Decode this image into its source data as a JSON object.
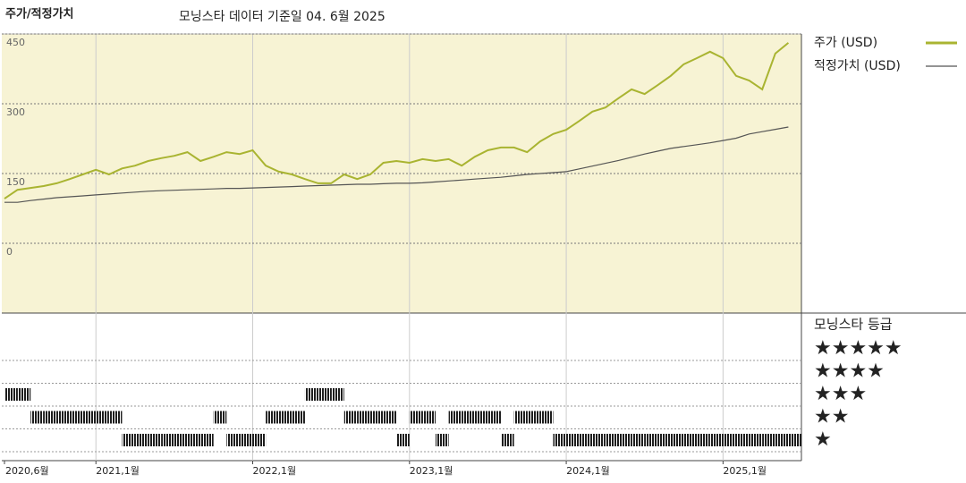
{
  "chart_data": {
    "type": "line",
    "title": "주가/적정가치",
    "subtitle": "모닝스타 데이터 기준일 04. 6월 2025",
    "x": [
      "2020-06",
      "2020-07",
      "2020-08",
      "2020-09",
      "2020-10",
      "2020-11",
      "2020-12",
      "2021-01",
      "2021-02",
      "2021-03",
      "2021-04",
      "2021-05",
      "2021-06",
      "2021-07",
      "2021-08",
      "2021-09",
      "2021-10",
      "2021-11",
      "2021-12",
      "2022-01",
      "2022-02",
      "2022-03",
      "2022-04",
      "2022-05",
      "2022-06",
      "2022-07",
      "2022-08",
      "2022-09",
      "2022-10",
      "2022-11",
      "2022-12",
      "2023-01",
      "2023-02",
      "2023-03",
      "2023-04",
      "2023-05",
      "2023-06",
      "2023-07",
      "2023-08",
      "2023-09",
      "2023-10",
      "2023-11",
      "2023-12",
      "2024-01",
      "2024-02",
      "2024-03",
      "2024-04",
      "2024-05",
      "2024-06",
      "2024-07",
      "2024-08",
      "2024-09",
      "2024-10",
      "2024-11",
      "2024-12",
      "2025-01",
      "2025-02",
      "2025-03",
      "2025-04",
      "2025-05",
      "2025-06"
    ],
    "xlim": [
      "2020-06",
      "2025-07"
    ],
    "xticks": [
      {
        "value": "2020-06",
        "label": "2020,6월"
      },
      {
        "value": "2021-01",
        "label": "2021,1월"
      },
      {
        "value": "2022-01",
        "label": "2022,1월"
      },
      {
        "value": "2023-01",
        "label": "2023,1월"
      },
      {
        "value": "2024-01",
        "label": "2024,1월"
      },
      {
        "value": "2025-01",
        "label": "2025,1월"
      }
    ],
    "ylim": [
      -150,
      450
    ],
    "yticks": [
      0,
      150,
      300,
      450
    ],
    "grid": true,
    "background": "#f7f3d4",
    "series": [
      {
        "name": "주가 (USD)",
        "color": "#a9b431",
        "values": [
          96,
          115,
          119,
          123,
          129,
          138,
          148,
          158,
          148,
          161,
          167,
          177,
          183,
          188,
          196,
          177,
          186,
          196,
          192,
          200,
          167,
          154,
          148,
          138,
          129,
          129,
          148,
          138,
          148,
          173,
          177,
          173,
          181,
          177,
          181,
          167,
          186,
          200,
          206,
          206,
          196,
          219,
          235,
          244,
          263,
          283,
          292,
          312,
          331,
          321,
          340,
          360,
          385,
          398,
          412,
          398,
          360,
          350,
          331,
          408,
          431
        ]
      },
      {
        "name": "적정가치 (USD)",
        "color": "#555555",
        "values": [
          88,
          88,
          92,
          95,
          98,
          100,
          102,
          104,
          106,
          108,
          110,
          112,
          113,
          114,
          115,
          116,
          117,
          118,
          118,
          119,
          120,
          121,
          122,
          123,
          124,
          125,
          126,
          127,
          127,
          128,
          129,
          129,
          130,
          132,
          134,
          136,
          138,
          140,
          142,
          145,
          148,
          150,
          152,
          154,
          160,
          166,
          172,
          178,
          185,
          192,
          198,
          204,
          208,
          212,
          216,
          221,
          226,
          235,
          240,
          245,
          250
        ]
      }
    ],
    "rating": {
      "title": "모닝스타 등급",
      "color": "#1e1e1e",
      "ticks": [
        {
          "value": 5,
          "label": "★★★★★"
        },
        {
          "value": 4,
          "label": "★★★★"
        },
        {
          "value": 3,
          "label": "★★★"
        },
        {
          "value": 2,
          "label": "★★"
        },
        {
          "value": 1,
          "label": "★"
        }
      ],
      "values": [
        3,
        3,
        2,
        2,
        2,
        2,
        2,
        2,
        2,
        1,
        1,
        1,
        1,
        1,
        1,
        1,
        2,
        1,
        1,
        1,
        2,
        2,
        2,
        3,
        3,
        3,
        2,
        2,
        2,
        2,
        1,
        2,
        2,
        1,
        2,
        2,
        2,
        2,
        1,
        2,
        2,
        2,
        1,
        1,
        1,
        1,
        1,
        1,
        1,
        1,
        1,
        1,
        1,
        1,
        1,
        1,
        1,
        1,
        1,
        1,
        1
      ]
    }
  }
}
